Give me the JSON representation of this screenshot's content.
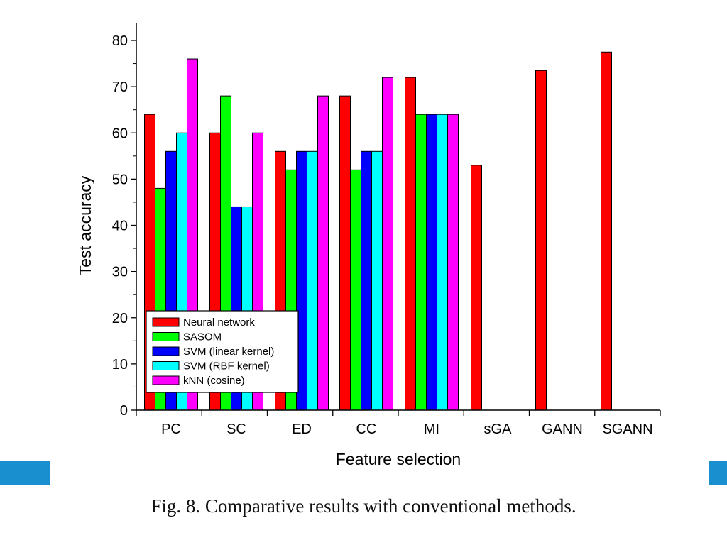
{
  "chart_data": {
    "type": "bar",
    "title": "",
    "xlabel": "Feature selection",
    "ylabel": "Test accuracy",
    "ylim": [
      0,
      80
    ],
    "yticks": [
      0,
      10,
      20,
      30,
      40,
      50,
      60,
      70,
      80
    ],
    "categories": [
      "PC",
      "SC",
      "ED",
      "CC",
      "MI",
      "sGA",
      "GANN",
      "SGANN"
    ],
    "series": [
      {
        "name": "Neural network",
        "color": "#ff0000",
        "values": [
          64,
          60,
          56,
          68,
          72,
          53,
          73.5,
          77.5
        ]
      },
      {
        "name": "SASOM",
        "color": "#00ff00",
        "values": [
          48,
          68,
          52,
          52,
          64,
          null,
          null,
          null
        ]
      },
      {
        "name": "SVM (linear kernel)",
        "color": "#0000ff",
        "values": [
          56,
          44,
          56,
          56,
          64,
          null,
          null,
          null
        ]
      },
      {
        "name": "SVM (RBF kernel)",
        "color": "#00ffff",
        "values": [
          60,
          44,
          56,
          56,
          64,
          null,
          null,
          null
        ]
      },
      {
        "name": "kNN (cosine)",
        "color": "#ff00ff",
        "values": [
          76,
          60,
          68,
          72,
          64,
          null,
          null,
          null
        ]
      }
    ],
    "legend_position": "bottom-left",
    "grid": false
  },
  "caption": "Fig. 8.  Comparative results with conventional methods.",
  "decor": {
    "side_bar_color": "#1a8fd0"
  }
}
